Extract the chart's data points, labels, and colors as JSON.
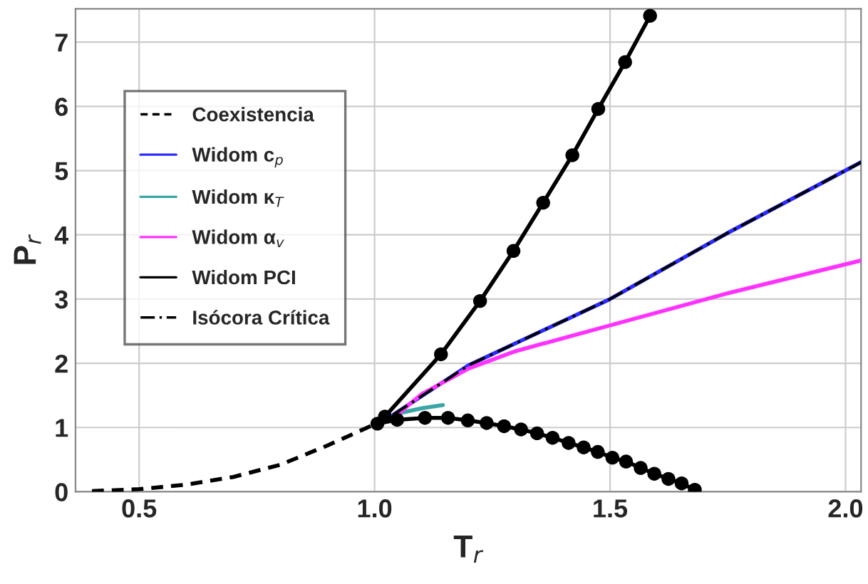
{
  "chart_data": {
    "type": "line",
    "xlabel": "T$_{r}$",
    "ylabel": "P$_{r}$",
    "xlim": [
      0.365,
      2.033
    ],
    "ylim": [
      0,
      7.52
    ],
    "xticks": [
      0.5,
      {
        "value": 1.0,
        "label": "1.0"
      },
      1.5,
      {
        "value": 2.0,
        "label": "2.0"
      }
    ],
    "yticks": [
      0,
      1,
      2,
      3,
      4,
      5,
      6,
      7
    ],
    "grid": true,
    "legend": "top left",
    "series": [
      {
        "name": "Coexistencia",
        "color": "#000000",
        "line_style": "dashed",
        "x": [
          0.4,
          0.5,
          0.6,
          0.7,
          0.8,
          0.9,
          1.0
        ],
        "values": [
          0.01,
          0.04,
          0.11,
          0.23,
          0.42,
          0.72,
          1.05
        ]
      },
      {
        "name": "Widom c$_{p}$",
        "color": "#2b2bff",
        "line_style": "solid",
        "x": [
          1.04,
          1.2,
          1.5,
          1.75,
          2.033
        ],
        "values": [
          1.2,
          1.97,
          3.0,
          4.03,
          5.13
        ]
      },
      {
        "name": "Widom κ$_{T}$",
        "color": "#3aa6a6",
        "line_style": "solid",
        "x": [
          1.05,
          1.1,
          1.145
        ],
        "values": [
          1.22,
          1.3,
          1.35
        ]
      },
      {
        "name": "Widom α$_{v}$",
        "color": "#ff33ff",
        "line_style": "solid",
        "x": [
          1.04,
          1.1,
          1.2,
          1.3,
          1.5,
          1.75,
          2.033
        ],
        "values": [
          1.15,
          1.52,
          1.92,
          2.19,
          2.59,
          3.09,
          3.6
        ]
      },
      {
        "name": "Widom PCI",
        "color": "#000000",
        "line_style": "solid",
        "marker": "circle",
        "x": [
          1.585,
          1.532,
          1.475,
          1.42,
          1.358,
          1.295,
          1.224,
          1.141,
          1.022,
          1.006,
          1.048,
          1.107,
          1.156,
          1.198,
          1.238,
          1.275,
          1.311,
          1.345,
          1.378,
          1.412,
          1.444,
          1.474,
          1.505,
          1.534,
          1.565,
          1.594,
          1.624,
          1.652,
          1.68
        ],
        "values": [
          7.41,
          6.69,
          5.96,
          5.24,
          4.5,
          3.75,
          2.97,
          2.14,
          1.17,
          1.06,
          1.12,
          1.15,
          1.15,
          1.11,
          1.07,
          1.02,
          0.97,
          0.91,
          0.84,
          0.76,
          0.69,
          0.62,
          0.53,
          0.47,
          0.37,
          0.28,
          0.2,
          0.13,
          0.03
        ]
      },
      {
        "name": "Isócora Crítica",
        "color": "#000000",
        "line_style": "dashdot",
        "x": [
          1.04,
          1.2,
          1.5,
          1.75,
          2.033
        ],
        "values": [
          1.2,
          1.97,
          3.0,
          4.03,
          5.13
        ]
      }
    ]
  }
}
